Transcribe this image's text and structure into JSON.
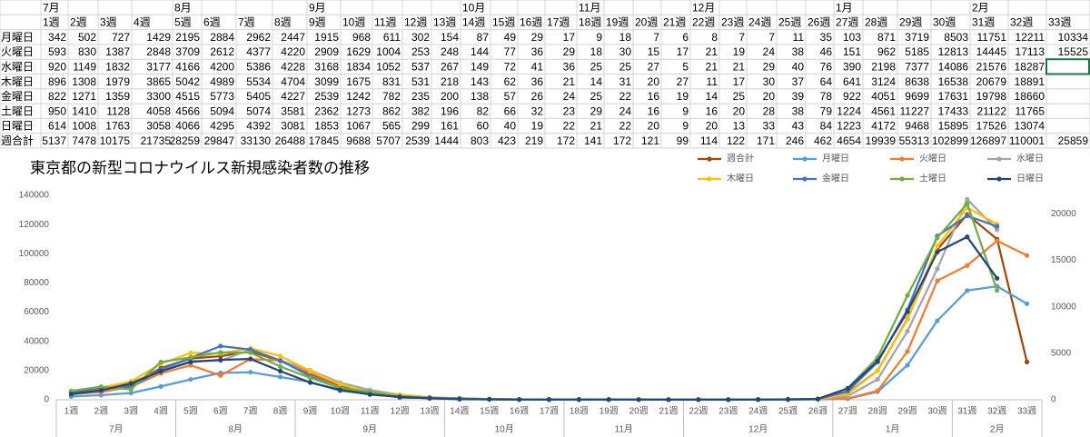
{
  "chart_data": {
    "type": "line",
    "title": "東京都の新型コロナウイルス新規感染者数の推移",
    "categories": [
      "1週",
      "2週",
      "3週",
      "4週",
      "5週",
      "6週",
      "7週",
      "8週",
      "9週",
      "10週",
      "11週",
      "12週",
      "13週",
      "14週",
      "15週",
      "16週",
      "17週",
      "18週",
      "19週",
      "20週",
      "21週",
      "22週",
      "23週",
      "24週",
      "25週",
      "26週",
      "27週",
      "28週",
      "29週",
      "30週",
      "31週",
      "32週",
      "33週"
    ],
    "groups": [
      "7月",
      null,
      null,
      null,
      "8月",
      null,
      null,
      null,
      "9月",
      null,
      null,
      null,
      null,
      "10月",
      null,
      null,
      null,
      "11月",
      null,
      null,
      null,
      "12月",
      null,
      null,
      null,
      null,
      "1月",
      null,
      null,
      null,
      "2月",
      null,
      null
    ],
    "ylim": [
      0,
      140000
    ],
    "yticks": [
      0,
      20000,
      40000,
      60000,
      80000,
      100000,
      120000,
      140000
    ],
    "y2lim": [
      0,
      22000
    ],
    "y2ticks": [
      0,
      5000,
      10000,
      15000,
      20000
    ],
    "grid": false,
    "legend": "top-right",
    "series": [
      {
        "name": "週合計",
        "color": "#9e480e",
        "values": [
          5137,
          7478,
          10175,
          21735,
          28259,
          29847,
          33130,
          26488,
          17845,
          9688,
          5707,
          2539,
          1444,
          803,
          423,
          219,
          172,
          141,
          172,
          121,
          99,
          114,
          122,
          171,
          246,
          462,
          4654,
          19939,
          55313,
          102899,
          126897,
          110001,
          25859
        ]
      },
      {
        "name": "月曜日",
        "color": "#5b9bd5",
        "axis": "y2",
        "values": [
          342,
          502,
          727,
          1429,
          2195,
          2884,
          2962,
          2447,
          1915,
          968,
          611,
          302,
          154,
          87,
          49,
          29,
          17,
          9,
          18,
          7,
          6,
          8,
          7,
          7,
          11,
          35,
          103,
          871,
          3719,
          8503,
          11751,
          12211,
          10334
        ]
      },
      {
        "name": "火曜日",
        "color": "#ed7d31",
        "axis": "y2",
        "values": [
          593,
          830,
          1387,
          2848,
          3709,
          2612,
          4377,
          4220,
          2909,
          1629,
          1004,
          253,
          248,
          144,
          77,
          36,
          29,
          18,
          30,
          15,
          17,
          21,
          19,
          24,
          38,
          46,
          151,
          962,
          5185,
          12813,
          14445,
          17113,
          15525
        ]
      },
      {
        "name": "水曜日",
        "color": "#a5a5a5",
        "axis": "y2",
        "values": [
          920,
          1149,
          1832,
          3177,
          4166,
          4200,
          5386,
          4228,
          3168,
          1834,
          1052,
          537,
          267,
          149,
          72,
          41,
          36,
          25,
          25,
          27,
          5,
          21,
          21,
          29,
          40,
          76,
          390,
          2198,
          7377,
          14086,
          21576,
          18287,
          null
        ]
      },
      {
        "name": "木曜日",
        "color": "#ffc000",
        "axis": "y2",
        "values": [
          896,
          1308,
          1979,
          3865,
          5042,
          4989,
          5534,
          4704,
          3099,
          1675,
          831,
          531,
          218,
          143,
          62,
          36,
          21,
          14,
          31,
          20,
          27,
          11,
          17,
          30,
          37,
          64,
          641,
          3124,
          8638,
          16538,
          20679,
          18891,
          null
        ]
      },
      {
        "name": "金曜日",
        "color": "#4472c4",
        "axis": "y2",
        "values": [
          822,
          1271,
          1359,
          3300,
          4515,
          5773,
          5405,
          4227,
          2539,
          1242,
          782,
          235,
          200,
          138,
          57,
          26,
          24,
          25,
          22,
          16,
          19,
          14,
          25,
          20,
          39,
          78,
          922,
          4051,
          9699,
          17631,
          19798,
          18660,
          null
        ]
      },
      {
        "name": "土曜日",
        "color": "#70ad47",
        "axis": "y2",
        "values": [
          950,
          1410,
          1128,
          4058,
          4566,
          5094,
          5074,
          3581,
          2362,
          1273,
          862,
          382,
          196,
          82,
          66,
          32,
          23,
          29,
          24,
          16,
          9,
          16,
          20,
          28,
          38,
          79,
          1224,
          4561,
          11227,
          17433,
          21122,
          11765,
          null
        ]
      },
      {
        "name": "日曜日",
        "color": "#264478",
        "axis": "y2",
        "values": [
          614,
          1008,
          1763,
          3058,
          4066,
          4295,
          4392,
          3081,
          1853,
          1067,
          565,
          299,
          161,
          60,
          40,
          19,
          22,
          21,
          22,
          20,
          9,
          20,
          13,
          33,
          43,
          84,
          1223,
          4172,
          9468,
          15895,
          17526,
          13074,
          null
        ]
      }
    ]
  }
}
